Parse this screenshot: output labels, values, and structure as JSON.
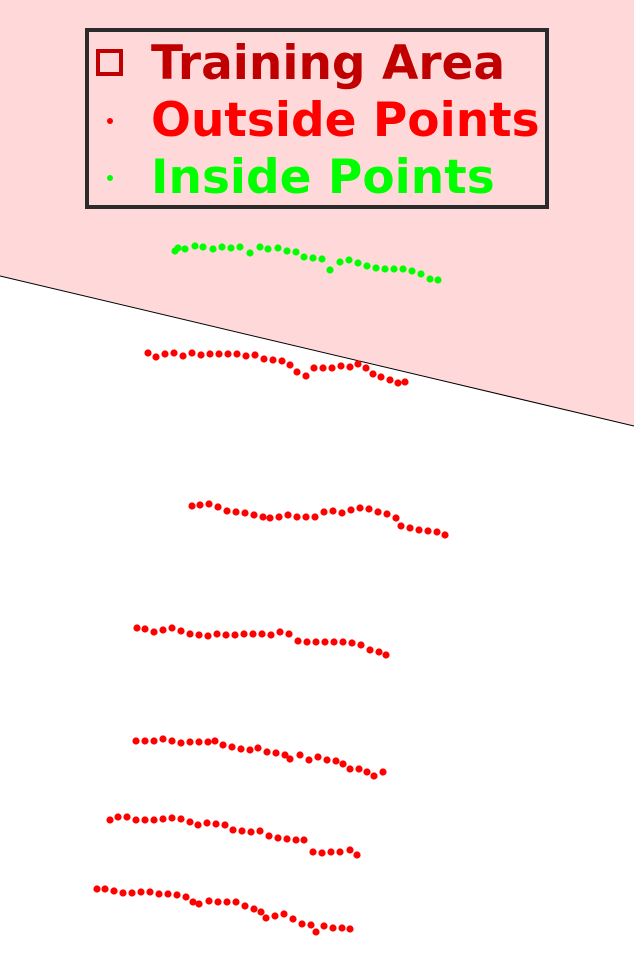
{
  "chart_data": {
    "type": "scatter",
    "title": "",
    "xlabel": "",
    "ylabel": "",
    "grid": false,
    "legend": {
      "placement": "top-left",
      "entries": [
        {
          "label": "Training Area",
          "marker": "square-outline",
          "color": "#c00000"
        },
        {
          "label": "Outside Points",
          "marker": "dot",
          "color": "#ff0000"
        },
        {
          "label": "Inside Points",
          "marker": "dot",
          "color": "#00ff00"
        }
      ]
    },
    "region": {
      "name": "Training Area",
      "fill": "#ffd9d9",
      "boundary_color": "#000000",
      "boundary": [
        [
          0,
          276
        ],
        [
          634,
          426
        ]
      ]
    },
    "colors": {
      "inside": "#00ff00",
      "outside": "#ff0000",
      "training_area": "#c00000"
    },
    "series": [
      {
        "name": "Inside Points",
        "status": "inside",
        "curves": [
          [
            [
              175,
              251
            ],
            [
              178,
              248
            ],
            [
              185,
              249
            ],
            [
              195,
              246
            ],
            [
              203,
              247
            ],
            [
              213,
              249
            ],
            [
              222,
              247
            ],
            [
              231,
              248
            ],
            [
              240,
              247
            ],
            [
              250,
              253
            ],
            [
              260,
              247
            ],
            [
              268,
              249
            ],
            [
              278,
              248
            ],
            [
              287,
              251
            ],
            [
              296,
              252
            ],
            [
              304,
              257
            ],
            [
              313,
              258
            ],
            [
              322,
              259
            ],
            [
              330,
              270
            ],
            [
              340,
              262
            ],
            [
              349,
              260
            ],
            [
              358,
              263
            ],
            [
              367,
              266
            ],
            [
              376,
              268
            ],
            [
              385,
              269
            ],
            [
              394,
              269
            ],
            [
              403,
              269
            ],
            [
              412,
              271
            ],
            [
              421,
              274
            ],
            [
              430,
              279
            ],
            [
              438,
              280
            ]
          ]
        ]
      },
      {
        "name": "Outside Points",
        "status": "outside",
        "curves": [
          [
            [
              148,
              353
            ],
            [
              156,
              357
            ],
            [
              165,
              354
            ],
            [
              174,
              353
            ],
            [
              183,
              356
            ],
            [
              192,
              353
            ],
            [
              201,
              355
            ],
            [
              210,
              354
            ],
            [
              219,
              354
            ],
            [
              228,
              354
            ],
            [
              237,
              354
            ],
            [
              246,
              356
            ],
            [
              255,
              355
            ],
            [
              264,
              359
            ],
            [
              273,
              360
            ],
            [
              282,
              361
            ],
            [
              290,
              365
            ],
            [
              297,
              372
            ],
            [
              306,
              376
            ],
            [
              314,
              368
            ],
            [
              323,
              368
            ],
            [
              332,
              368
            ],
            [
              341,
              366
            ],
            [
              350,
              367
            ],
            [
              358,
              364
            ],
            [
              366,
              368
            ],
            [
              373,
              374
            ],
            [
              381,
              377
            ],
            [
              390,
              380
            ],
            [
              398,
              383
            ],
            [
              405,
              382
            ]
          ],
          [
            [
              192,
              506
            ],
            [
              200,
              505
            ],
            [
              209,
              504
            ],
            [
              218,
              507
            ],
            [
              227,
              511
            ],
            [
              236,
              512
            ],
            [
              245,
              513
            ],
            [
              254,
              515
            ],
            [
              263,
              517
            ],
            [
              270,
              518
            ],
            [
              279,
              517
            ],
            [
              288,
              515
            ],
            [
              297,
              517
            ],
            [
              306,
              517
            ],
            [
              315,
              517
            ],
            [
              324,
              512
            ],
            [
              333,
              511
            ],
            [
              342,
              513
            ],
            [
              351,
              510
            ],
            [
              360,
              508
            ],
            [
              369,
              509
            ],
            [
              378,
              512
            ],
            [
              387,
              514
            ],
            [
              396,
              518
            ],
            [
              401,
              526
            ],
            [
              410,
              528
            ],
            [
              419,
              530
            ],
            [
              428,
              531
            ],
            [
              437,
              532
            ],
            [
              445,
              535
            ]
          ],
          [
            [
              137,
              628
            ],
            [
              145,
              629
            ],
            [
              154,
              632
            ],
            [
              163,
              630
            ],
            [
              172,
              628
            ],
            [
              181,
              631
            ],
            [
              190,
              634
            ],
            [
              199,
              635
            ],
            [
              208,
              636
            ],
            [
              217,
              634
            ],
            [
              226,
              635
            ],
            [
              235,
              635
            ],
            [
              244,
              634
            ],
            [
              253,
              634
            ],
            [
              262,
              634
            ],
            [
              271,
              635
            ],
            [
              280,
              632
            ],
            [
              289,
              634
            ],
            [
              298,
              641
            ],
            [
              307,
              642
            ],
            [
              316,
              642
            ],
            [
              325,
              642
            ],
            [
              334,
              642
            ],
            [
              343,
              642
            ],
            [
              352,
              643
            ],
            [
              361,
              645
            ],
            [
              370,
              650
            ],
            [
              379,
              652
            ],
            [
              386,
              655
            ]
          ],
          [
            [
              136,
              741
            ],
            [
              145,
              741
            ],
            [
              154,
              741
            ],
            [
              163,
              739
            ],
            [
              172,
              741
            ],
            [
              181,
              743
            ],
            [
              190,
              742
            ],
            [
              199,
              742
            ],
            [
              208,
              742
            ],
            [
              215,
              741
            ],
            [
              223,
              745
            ],
            [
              232,
              747
            ],
            [
              241,
              749
            ],
            [
              250,
              750
            ],
            [
              258,
              748
            ],
            [
              267,
              752
            ],
            [
              276,
              753
            ],
            [
              285,
              755
            ],
            [
              290,
              759
            ],
            [
              300,
              755
            ],
            [
              309,
              760
            ],
            [
              318,
              757
            ],
            [
              327,
              760
            ],
            [
              336,
              761
            ],
            [
              343,
              764
            ],
            [
              350,
              769
            ],
            [
              359,
              769
            ],
            [
              367,
              772
            ],
            [
              374,
              776
            ],
            [
              383,
              772
            ]
          ],
          [
            [
              110,
              820
            ],
            [
              118,
              817
            ],
            [
              127,
              817
            ],
            [
              136,
              820
            ],
            [
              145,
              820
            ],
            [
              154,
              820
            ],
            [
              163,
              819
            ],
            [
              172,
              818
            ],
            [
              181,
              819
            ],
            [
              190,
              822
            ],
            [
              198,
              825
            ],
            [
              207,
              823
            ],
            [
              216,
              824
            ],
            [
              225,
              825
            ],
            [
              233,
              830
            ],
            [
              242,
              831
            ],
            [
              251,
              832
            ],
            [
              260,
              831
            ],
            [
              269,
              836
            ],
            [
              278,
              838
            ],
            [
              287,
              839
            ],
            [
              296,
              840
            ],
            [
              304,
              840
            ],
            [
              313,
              852
            ],
            [
              322,
              853
            ],
            [
              331,
              852
            ],
            [
              340,
              852
            ],
            [
              350,
              850
            ],
            [
              357,
              855
            ]
          ],
          [
            [
              97,
              889
            ],
            [
              105,
              889
            ],
            [
              114,
              891
            ],
            [
              123,
              893
            ],
            [
              132,
              893
            ],
            [
              141,
              892
            ],
            [
              150,
              892
            ],
            [
              159,
              894
            ],
            [
              168,
              894
            ],
            [
              177,
              895
            ],
            [
              186,
              897
            ],
            [
              193,
              902
            ],
            [
              199,
              904
            ],
            [
              209,
              901
            ],
            [
              218,
              902
            ],
            [
              227,
              902
            ],
            [
              236,
              902
            ],
            [
              245,
              906
            ],
            [
              254,
              909
            ],
            [
              261,
              912
            ],
            [
              266,
              918
            ],
            [
              275,
              916
            ],
            [
              284,
              914
            ],
            [
              293,
              919
            ],
            [
              302,
              924
            ],
            [
              311,
              925
            ],
            [
              316,
              932
            ],
            [
              324,
              926
            ],
            [
              333,
              928
            ],
            [
              342,
              928
            ],
            [
              350,
              929
            ]
          ]
        ]
      }
    ]
  }
}
